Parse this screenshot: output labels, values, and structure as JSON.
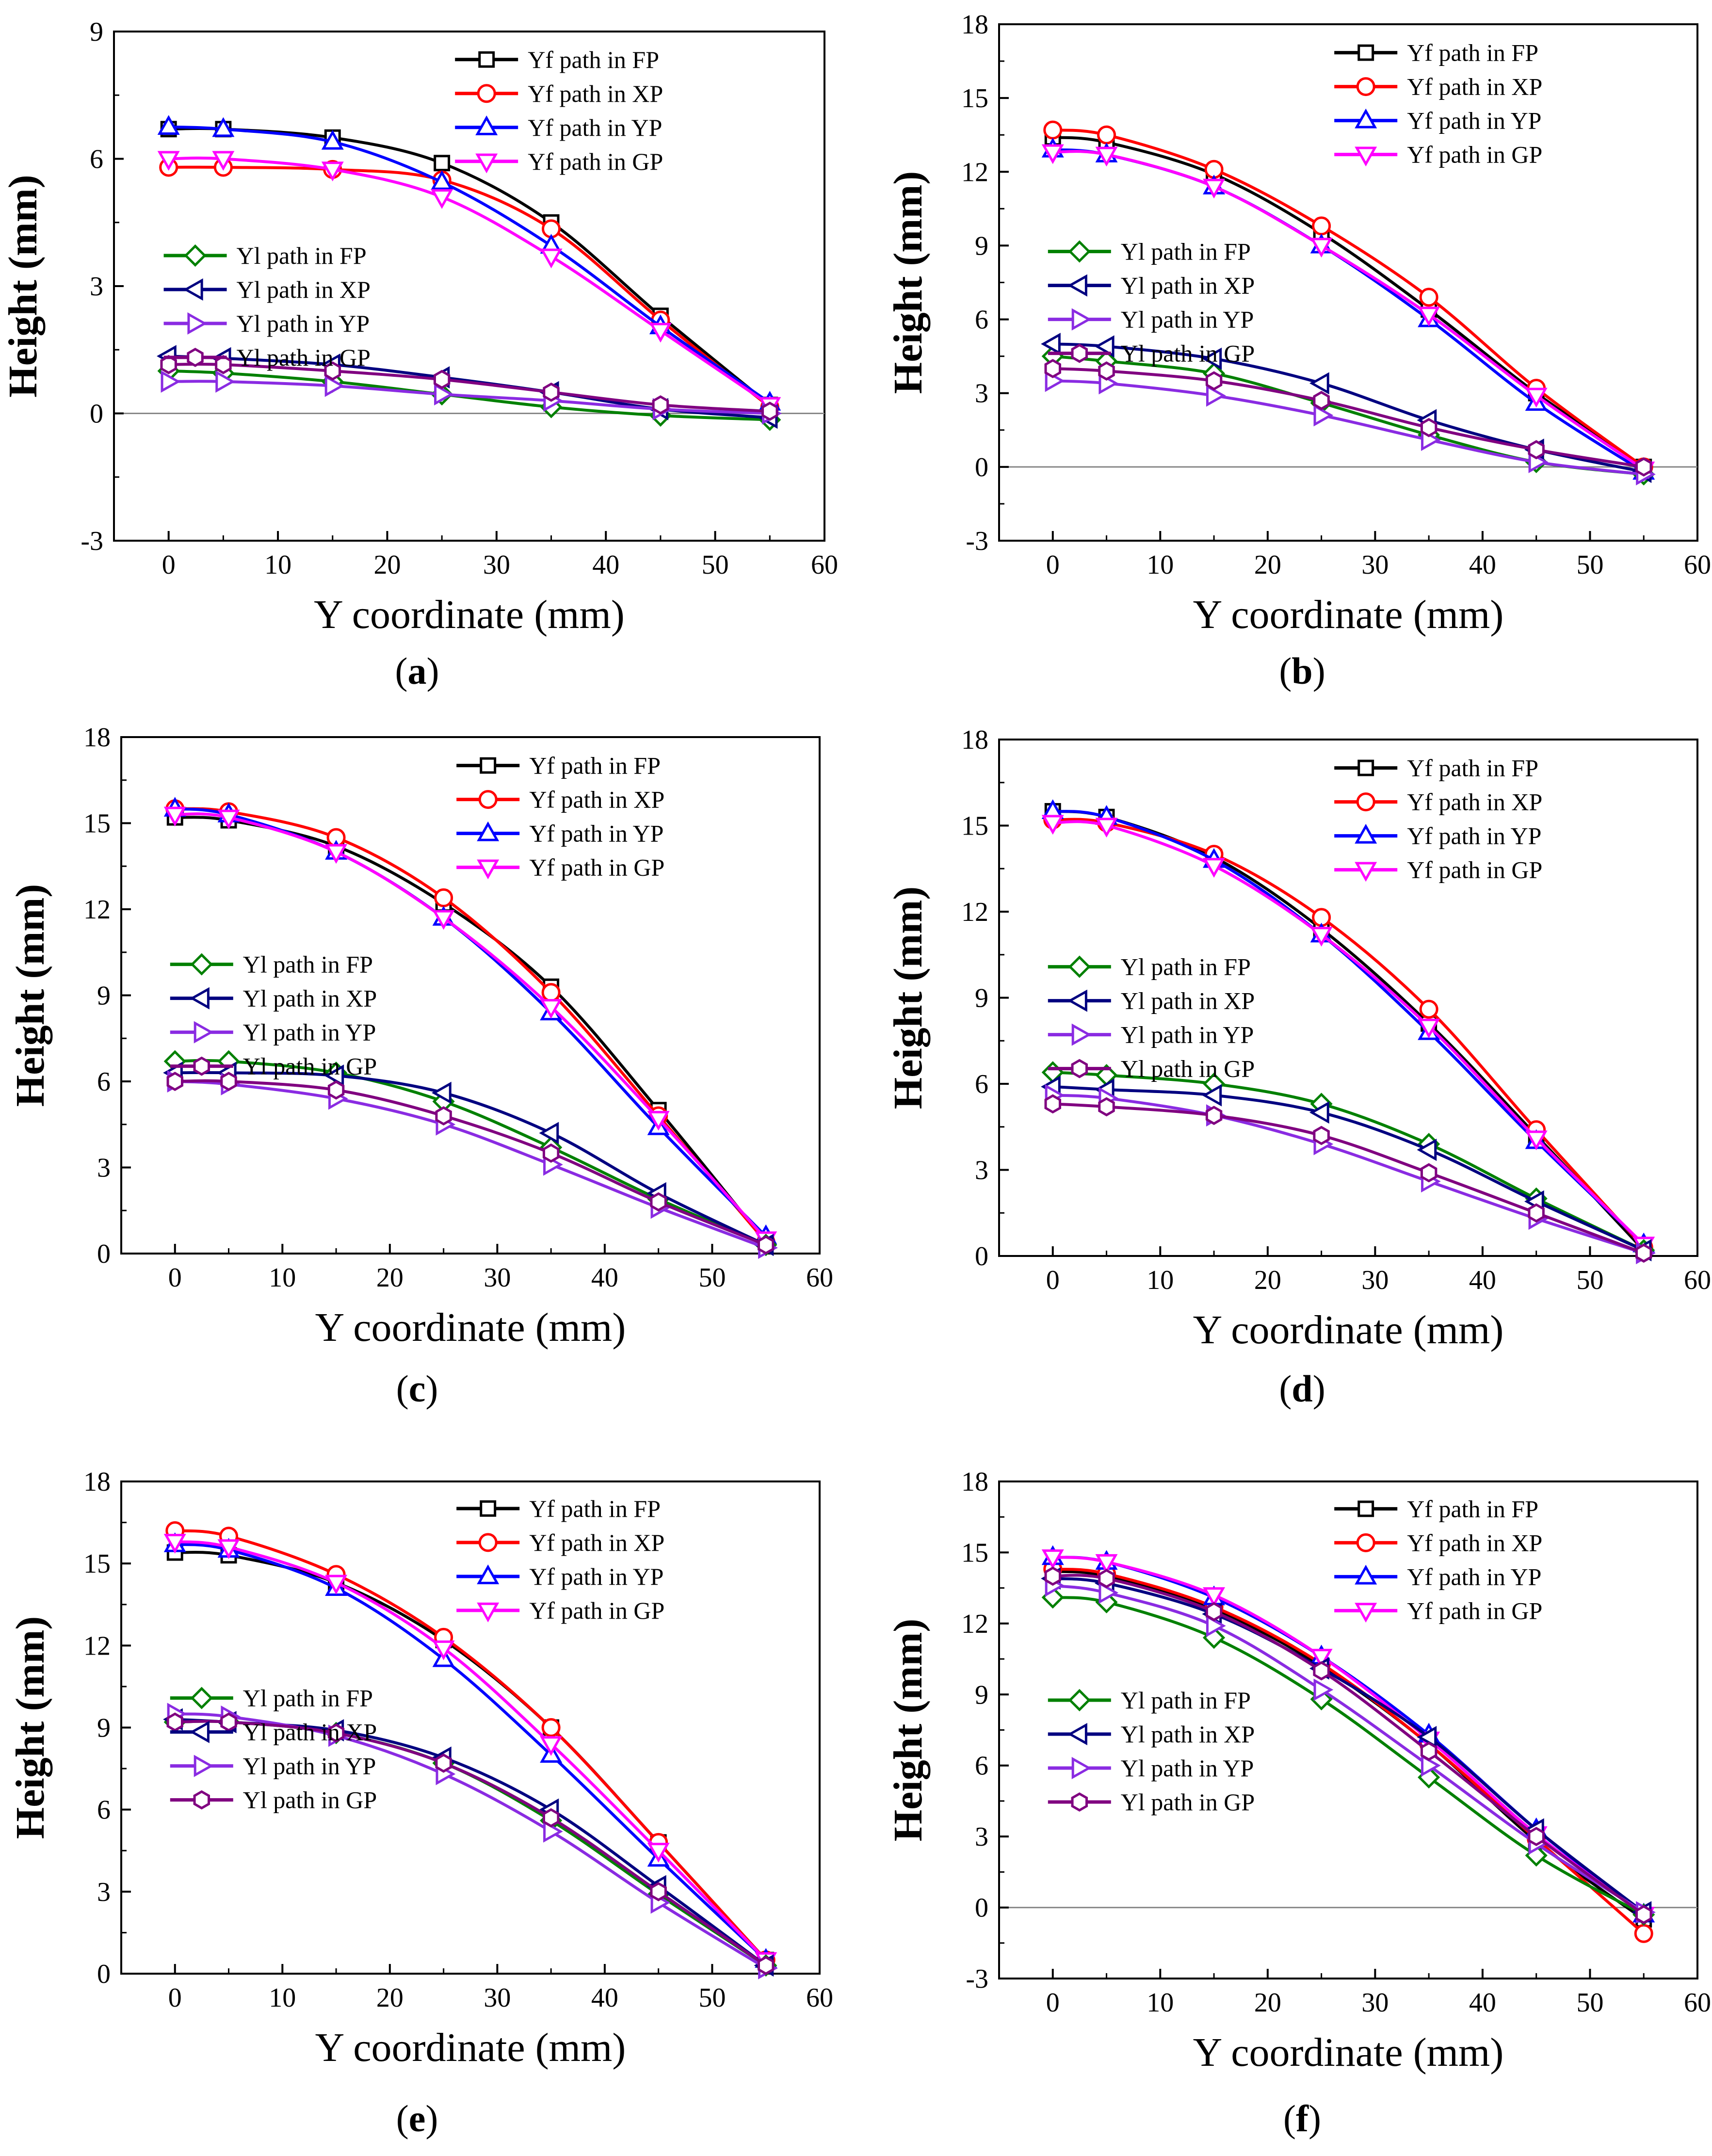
{
  "figure": {
    "captions": [
      "a",
      "b",
      "c",
      "d",
      "e",
      "f"
    ]
  },
  "colors": {
    "FP_f": "#000000",
    "XP_f": "#ff0000",
    "YP_f": "#0000ff",
    "GP_f": "#ff00ff",
    "FP_l": "#008000",
    "XP_l": "#000080",
    "YP_l": "#8a2be2",
    "GP_l": "#800080"
  },
  "chart_data": [
    {
      "type": "line",
      "caption": "a",
      "xlabel": "Y coordinate (mm)",
      "ylabel": "Height (mm)",
      "xlim": [
        -5,
        60
      ],
      "ylim": [
        -3,
        9
      ],
      "xticks": [
        0,
        10,
        20,
        30,
        40,
        50,
        60
      ],
      "yticks": [
        -3,
        0,
        3,
        6,
        9
      ],
      "zero_line": true,
      "x": [
        0,
        5,
        15,
        25,
        35,
        45,
        55
      ],
      "series": [
        {
          "name": "Yf path in FP",
          "key": "FP_f",
          "marker": "square",
          "values": [
            6.7,
            6.7,
            6.5,
            5.9,
            4.5,
            2.3,
            0.2
          ]
        },
        {
          "name": "Yf path in XP",
          "key": "XP_f",
          "marker": "circle",
          "values": [
            5.8,
            5.8,
            5.75,
            5.5,
            4.35,
            2.2,
            0.15
          ]
        },
        {
          "name": "Yf path in YP",
          "key": "YP_f",
          "marker": "triangle-up",
          "values": [
            6.75,
            6.7,
            6.4,
            5.45,
            3.95,
            2.05,
            0.25
          ]
        },
        {
          "name": "Yf path in GP",
          "key": "GP_f",
          "marker": "triangle-down",
          "values": [
            6.0,
            6.0,
            5.75,
            5.1,
            3.7,
            1.95,
            0.2
          ]
        },
        {
          "name": "Yl path in FP",
          "key": "FP_l",
          "marker": "diamond",
          "values": [
            1.0,
            0.95,
            0.75,
            0.45,
            0.15,
            -0.05,
            -0.15
          ]
        },
        {
          "name": "Yl path in XP",
          "key": "XP_l",
          "marker": "triangle-left",
          "values": [
            1.35,
            1.3,
            1.15,
            0.85,
            0.5,
            0.1,
            -0.1
          ]
        },
        {
          "name": "Yl path in YP",
          "key": "YP_l",
          "marker": "triangle-right",
          "values": [
            0.75,
            0.75,
            0.65,
            0.45,
            0.3,
            0.1,
            0.0
          ]
        },
        {
          "name": "Yl path in GP",
          "key": "GP_l",
          "marker": "hexagon",
          "values": [
            1.15,
            1.15,
            1.0,
            0.8,
            0.5,
            0.2,
            0.05
          ]
        }
      ],
      "legend_groups": [
        {
          "position": "top-right",
          "series": [
            0,
            1,
            2,
            3
          ]
        },
        {
          "position": "middle-left",
          "series": [
            4,
            5,
            6,
            7
          ]
        }
      ]
    },
    {
      "type": "line",
      "caption": "b",
      "xlabel": "Y coordinate (mm)",
      "ylabel": "Height (mm)",
      "xlim": [
        -5,
        60
      ],
      "ylim": [
        -3,
        18
      ],
      "xticks": [
        0,
        10,
        20,
        30,
        40,
        50,
        60
      ],
      "yticks": [
        -3,
        0,
        3,
        6,
        9,
        12,
        15,
        18
      ],
      "zero_line": true,
      "x": [
        0,
        5,
        15,
        25,
        35,
        45,
        55
      ],
      "series": [
        {
          "name": "Yf path in FP",
          "key": "FP_f",
          "marker": "square",
          "values": [
            13.4,
            13.2,
            11.9,
            9.5,
            6.4,
            3.0,
            0.0
          ]
        },
        {
          "name": "Yf path in XP",
          "key": "XP_f",
          "marker": "circle",
          "values": [
            13.7,
            13.5,
            12.1,
            9.8,
            6.9,
            3.2,
            0.0
          ]
        },
        {
          "name": "Yf path in YP",
          "key": "YP_f",
          "marker": "triangle-up",
          "values": [
            12.9,
            12.7,
            11.4,
            9.0,
            6.0,
            2.6,
            -0.2
          ]
        },
        {
          "name": "Yf path in GP",
          "key": "GP_f",
          "marker": "triangle-down",
          "values": [
            12.8,
            12.7,
            11.4,
            9.0,
            6.2,
            2.9,
            -0.1
          ]
        },
        {
          "name": "Yl path in FP",
          "key": "FP_l",
          "marker": "diamond",
          "values": [
            4.5,
            4.3,
            3.8,
            2.6,
            1.3,
            0.2,
            -0.3
          ]
        },
        {
          "name": "Yl path in XP",
          "key": "XP_l",
          "marker": "triangle-left",
          "values": [
            5.0,
            4.9,
            4.4,
            3.4,
            1.9,
            0.7,
            -0.2
          ]
        },
        {
          "name": "Yl path in YP",
          "key": "YP_l",
          "marker": "triangle-right",
          "values": [
            3.5,
            3.4,
            2.9,
            2.1,
            1.1,
            0.2,
            -0.3
          ]
        },
        {
          "name": "Yl path in GP",
          "key": "GP_l",
          "marker": "hexagon",
          "values": [
            4.0,
            3.9,
            3.5,
            2.7,
            1.6,
            0.7,
            0.0
          ]
        }
      ],
      "legend_groups": [
        {
          "position": "top-right",
          "series": [
            0,
            1,
            2,
            3
          ]
        },
        {
          "position": "middle-left",
          "series": [
            4,
            5,
            6,
            7
          ]
        }
      ]
    },
    {
      "type": "line",
      "caption": "c",
      "xlabel": "Y coordinate (mm)",
      "ylabel": "Height (mm)",
      "xlim": [
        -5,
        60
      ],
      "ylim": [
        0,
        18
      ],
      "xticks": [
        0,
        10,
        20,
        30,
        40,
        50,
        60
      ],
      "yticks": [
        0,
        3,
        6,
        9,
        12,
        15,
        18
      ],
      "zero_line": false,
      "x": [
        0,
        5,
        15,
        25,
        35,
        45,
        55
      ],
      "series": [
        {
          "name": "Yf path in FP",
          "key": "FP_f",
          "marker": "square",
          "values": [
            15.2,
            15.1,
            14.2,
            12.2,
            9.3,
            5.0,
            0.4
          ]
        },
        {
          "name": "Yf path in XP",
          "key": "XP_f",
          "marker": "circle",
          "values": [
            15.5,
            15.4,
            14.5,
            12.4,
            9.1,
            4.8,
            0.4
          ]
        },
        {
          "name": "Yf path in YP",
          "key": "YP_f",
          "marker": "triangle-up",
          "values": [
            15.5,
            15.3,
            14.0,
            11.7,
            8.4,
            4.4,
            0.6
          ]
        },
        {
          "name": "Yf path in GP",
          "key": "GP_f",
          "marker": "triangle-down",
          "values": [
            15.3,
            15.2,
            14.0,
            11.7,
            8.6,
            4.7,
            0.5
          ]
        },
        {
          "name": "Yl path in FP",
          "key": "FP_l",
          "marker": "diamond",
          "values": [
            6.7,
            6.7,
            6.3,
            5.3,
            3.7,
            1.9,
            0.3
          ]
        },
        {
          "name": "Yl path in XP",
          "key": "XP_l",
          "marker": "triangle-left",
          "values": [
            6.3,
            6.3,
            6.2,
            5.6,
            4.2,
            2.1,
            0.3
          ]
        },
        {
          "name": "Yl path in YP",
          "key": "YP_l",
          "marker": "triangle-right",
          "values": [
            6.0,
            5.9,
            5.4,
            4.5,
            3.1,
            1.6,
            0.2
          ]
        },
        {
          "name": "Yl path in GP",
          "key": "GP_l",
          "marker": "hexagon",
          "values": [
            6.0,
            6.0,
            5.7,
            4.8,
            3.5,
            1.8,
            0.3
          ]
        }
      ],
      "legend_groups": [
        {
          "position": "top-right",
          "series": [
            0,
            1,
            2,
            3
          ]
        },
        {
          "position": "middle-left",
          "series": [
            4,
            5,
            6,
            7
          ]
        }
      ]
    },
    {
      "type": "line",
      "caption": "d",
      "xlabel": "Y coordinate (mm)",
      "ylabel": "Height (mm)",
      "xlim": [
        -5,
        60
      ],
      "ylim": [
        0,
        18
      ],
      "xticks": [
        0,
        10,
        20,
        30,
        40,
        50,
        60
      ],
      "yticks": [
        0,
        3,
        6,
        9,
        12,
        15,
        18
      ],
      "zero_line": false,
      "x": [
        0,
        5,
        15,
        25,
        35,
        45,
        55
      ],
      "series": [
        {
          "name": "Yf path in FP",
          "key": "FP_f",
          "marker": "square",
          "values": [
            15.5,
            15.3,
            13.9,
            11.4,
            8.1,
            4.2,
            0.2
          ]
        },
        {
          "name": "Yf path in XP",
          "key": "XP_f",
          "marker": "circle",
          "values": [
            15.2,
            15.1,
            14.0,
            11.8,
            8.6,
            4.4,
            0.3
          ]
        },
        {
          "name": "Yf path in YP",
          "key": "YP_f",
          "marker": "triangle-up",
          "values": [
            15.5,
            15.3,
            13.8,
            11.2,
            7.8,
            4.0,
            0.4
          ]
        },
        {
          "name": "Yf path in GP",
          "key": "GP_f",
          "marker": "triangle-down",
          "values": [
            15.1,
            15.0,
            13.6,
            11.2,
            8.0,
            4.1,
            0.4
          ]
        },
        {
          "name": "Yl path in FP",
          "key": "FP_l",
          "marker": "diamond",
          "values": [
            6.4,
            6.3,
            6.0,
            5.3,
            3.9,
            2.0,
            0.2
          ]
        },
        {
          "name": "Yl path in XP",
          "key": "XP_l",
          "marker": "triangle-left",
          "values": [
            5.9,
            5.8,
            5.6,
            5.0,
            3.7,
            1.9,
            0.2
          ]
        },
        {
          "name": "Yl path in YP",
          "key": "YP_l",
          "marker": "triangle-right",
          "values": [
            5.6,
            5.5,
            4.9,
            3.9,
            2.6,
            1.3,
            0.1
          ]
        },
        {
          "name": "Yl path in GP",
          "key": "GP_l",
          "marker": "hexagon",
          "values": [
            5.3,
            5.2,
            4.9,
            4.2,
            2.9,
            1.5,
            0.1
          ]
        }
      ],
      "legend_groups": [
        {
          "position": "top-right",
          "series": [
            0,
            1,
            2,
            3
          ]
        },
        {
          "position": "middle-left",
          "series": [
            4,
            5,
            6,
            7
          ]
        }
      ]
    },
    {
      "type": "line",
      "caption": "e",
      "xlabel": "Y coordinate (mm)",
      "ylabel": "Height (mm)",
      "xlim": [
        -5,
        60
      ],
      "ylim": [
        0,
        18
      ],
      "xticks": [
        0,
        10,
        20,
        30,
        40,
        50,
        60
      ],
      "yticks": [
        0,
        3,
        6,
        9,
        12,
        15,
        18
      ],
      "zero_line": false,
      "x": [
        0,
        5,
        15,
        25,
        35,
        45,
        55
      ],
      "series": [
        {
          "name": "Yf path in FP",
          "key": "FP_f",
          "marker": "square",
          "values": [
            15.4,
            15.3,
            14.3,
            12.2,
            9.0,
            4.8,
            0.5
          ]
        },
        {
          "name": "Yf path in XP",
          "key": "XP_f",
          "marker": "circle",
          "values": [
            16.2,
            16.0,
            14.6,
            12.3,
            9.0,
            4.8,
            0.5
          ]
        },
        {
          "name": "Yf path in YP",
          "key": "YP_f",
          "marker": "triangle-up",
          "values": [
            15.7,
            15.5,
            14.1,
            11.5,
            8.0,
            4.2,
            0.5
          ]
        },
        {
          "name": "Yf path in GP",
          "key": "GP_f",
          "marker": "triangle-down",
          "values": [
            15.8,
            15.6,
            14.3,
            11.9,
            8.4,
            4.5,
            0.5
          ]
        },
        {
          "name": "Yl path in FP",
          "key": "FP_l",
          "marker": "diamond",
          "values": [
            9.2,
            9.2,
            8.8,
            7.7,
            5.6,
            2.9,
            0.3
          ]
        },
        {
          "name": "Yl path in XP",
          "key": "XP_l",
          "marker": "triangle-left",
          "values": [
            9.3,
            9.2,
            8.9,
            7.9,
            6.0,
            3.2,
            0.3
          ]
        },
        {
          "name": "Yl path in YP",
          "key": "YP_l",
          "marker": "triangle-right",
          "values": [
            9.5,
            9.4,
            8.7,
            7.3,
            5.2,
            2.6,
            0.2
          ]
        },
        {
          "name": "Yl path in GP",
          "key": "GP_l",
          "marker": "hexagon",
          "values": [
            9.2,
            9.2,
            8.8,
            7.7,
            5.7,
            3.0,
            0.3
          ]
        }
      ],
      "legend_groups": [
        {
          "position": "top-right",
          "series": [
            0,
            1,
            2,
            3
          ]
        },
        {
          "position": "middle-left",
          "series": [
            4,
            5,
            6,
            7
          ]
        }
      ]
    },
    {
      "type": "line",
      "caption": "f",
      "xlabel": "Y coordinate (mm)",
      "ylabel": "Height (mm)",
      "xlim": [
        -5,
        60
      ],
      "ylim": [
        -3,
        18
      ],
      "xticks": [
        0,
        10,
        20,
        30,
        40,
        50,
        60
      ],
      "yticks": [
        -3,
        0,
        3,
        6,
        9,
        12,
        15,
        18
      ],
      "zero_line": true,
      "x": [
        0,
        5,
        15,
        25,
        35,
        45,
        55
      ],
      "series": [
        {
          "name": "Yf path in FP",
          "key": "FP_f",
          "marker": "square",
          "values": [
            14.2,
            14.0,
            12.6,
            10.2,
            6.9,
            2.8,
            -0.5
          ]
        },
        {
          "name": "Yf path in XP",
          "key": "XP_f",
          "marker": "circle",
          "values": [
            14.3,
            14.1,
            12.7,
            10.3,
            6.9,
            2.9,
            -1.1
          ]
        },
        {
          "name": "Yf path in YP",
          "key": "YP_f",
          "marker": "triangle-up",
          "values": [
            14.8,
            14.6,
            13.1,
            10.6,
            7.3,
            3.3,
            -0.3
          ]
        },
        {
          "name": "Yf path in GP",
          "key": "GP_f",
          "marker": "triangle-down",
          "values": [
            14.8,
            14.6,
            13.2,
            10.6,
            7.1,
            3.1,
            -0.3
          ]
        },
        {
          "name": "Yl path in FP",
          "key": "FP_l",
          "marker": "diamond",
          "values": [
            13.1,
            12.9,
            11.4,
            8.8,
            5.5,
            2.2,
            -0.3
          ]
        },
        {
          "name": "Yl path in XP",
          "key": "XP_l",
          "marker": "triangle-left",
          "values": [
            13.9,
            13.7,
            12.4,
            10.1,
            7.2,
            3.3,
            -0.2
          ]
        },
        {
          "name": "Yl path in YP",
          "key": "YP_l",
          "marker": "triangle-right",
          "values": [
            13.6,
            13.3,
            11.9,
            9.2,
            6.0,
            2.7,
            -0.2
          ]
        },
        {
          "name": "Yl path in GP",
          "key": "GP_l",
          "marker": "hexagon",
          "values": [
            14.0,
            13.9,
            12.5,
            10.0,
            6.6,
            3.0,
            -0.3
          ]
        }
      ],
      "legend_groups": [
        {
          "position": "top-right",
          "series": [
            0,
            1,
            2,
            3
          ]
        },
        {
          "position": "middle-left",
          "series": [
            4,
            5,
            6,
            7
          ]
        }
      ]
    }
  ]
}
